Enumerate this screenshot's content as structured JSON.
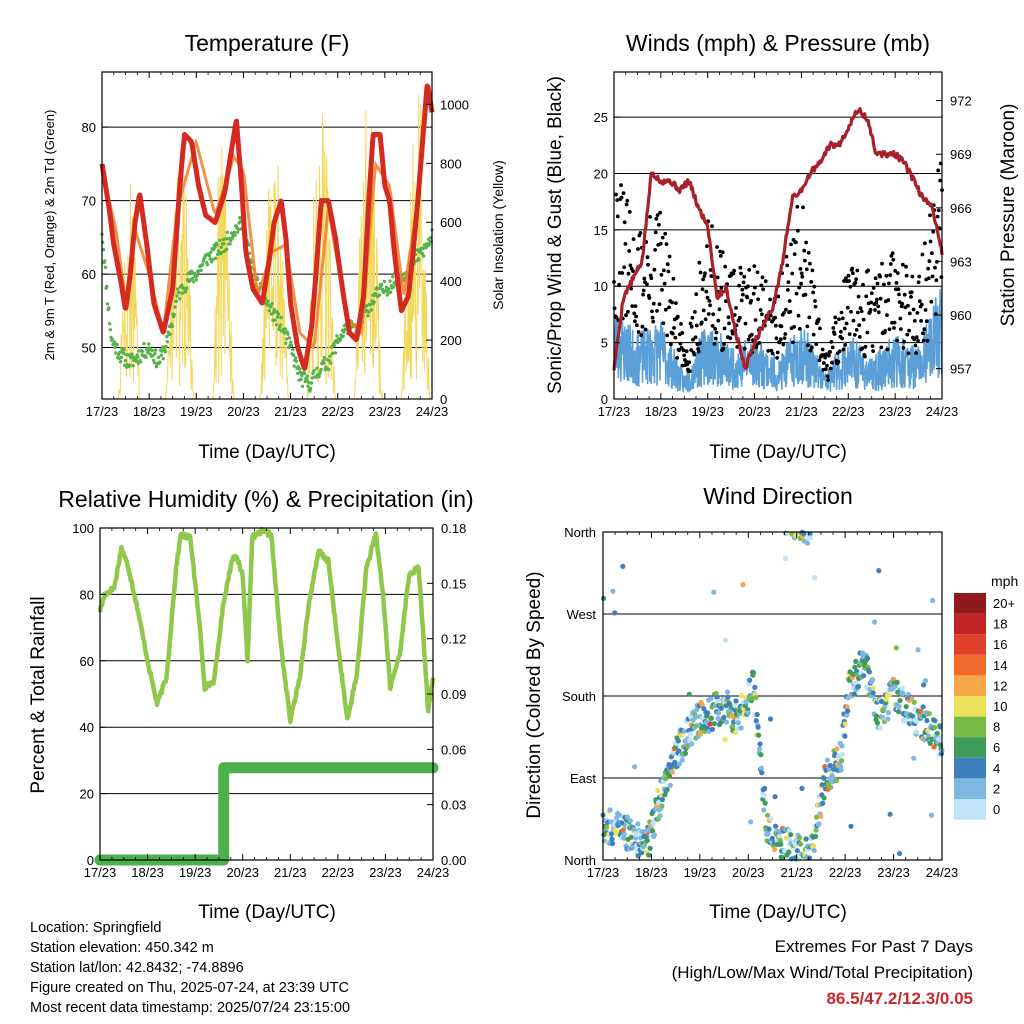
{
  "x_ticks": [
    "17/23",
    "18/23",
    "19/23",
    "20/23",
    "21/23",
    "22/23",
    "23/23",
    "24/23"
  ],
  "xlabel": "Time (Day/UTC)",
  "colors": {
    "temp2m": "#d42a20",
    "temp9m": "#f07f2a",
    "dew": "#56b24a",
    "solar": "#f4d85a",
    "wind": "#5a9fd8",
    "gust": "#000000",
    "pressure": "#a8202a",
    "rh": "#8fc84a",
    "precip": "#4cb04c",
    "extremes": "#c8282e"
  },
  "charts": {
    "temperature": {
      "title": "Temperature (F)",
      "ylabel": "2m & 9m T (Red, Orange) & 2m Td (Green)",
      "ylabel_right": "Solar Insolation (Yellow)",
      "y_ticks": [
        "50",
        "60",
        "70",
        "80"
      ],
      "y_ticks_right": [
        "0",
        "200",
        "400",
        "600",
        "800",
        "1000"
      ]
    },
    "winds": {
      "title": "Winds (mph) & Pressure (mb)",
      "ylabel": "Sonic/Prop Wind & Gust (Blue, Black)",
      "ylabel_right": "Station Pressure (Maroon)",
      "y_ticks": [
        "0",
        "5",
        "10",
        "15",
        "20",
        "25"
      ],
      "y_ticks_right": [
        "957",
        "960",
        "963",
        "966",
        "969",
        "972"
      ]
    },
    "humidity": {
      "title": "Relative Humidity (%) & Precipitation (in)",
      "ylabel": "Percent & Total Rainfall",
      "y_ticks": [
        "0",
        "20",
        "40",
        "60",
        "80",
        "100"
      ],
      "y_ticks_right": [
        "0.00",
        "0.03",
        "0.06",
        "0.09",
        "0.12",
        "0.15",
        "0.18"
      ]
    },
    "direction": {
      "title": "Wind Direction",
      "ylabel": "Direction (Colored By Speed)",
      "y_ticks": [
        "North",
        "East",
        "South",
        "West",
        "North"
      ],
      "legend_title": "mph",
      "legend_labels": [
        "20+",
        "18",
        "16",
        "14",
        "12",
        "10",
        "8",
        "6",
        "4",
        "2",
        "0"
      ],
      "legend_colors": [
        "#8e1a1e",
        "#c02326",
        "#e0412c",
        "#f26a2c",
        "#f8a64a",
        "#ece25a",
        "#79bb49",
        "#3e9c5a",
        "#3e7fbf",
        "#7fb7e3",
        "#bfe4f7"
      ]
    }
  },
  "info": {
    "location": "Location: Springfield",
    "elevation": "Station elevation: 450.342 m",
    "latlon": "Station lat/lon: 42.8432; -74.8896",
    "created": "Figure created on Thu, 2025-07-24, at 23:39 UTC",
    "recent": "Most recent data timestamp: 2025/07/24 23:15:00"
  },
  "extremes": {
    "line1": "Extremes For Past 7 Days",
    "line2": "(High/Low/Max Wind/Total Precipitation)",
    "values": "86.5/47.2/12.3/0.05"
  },
  "chart_data": [
    {
      "type": "line",
      "title": "Temperature (F)",
      "xlabel": "Time (Day/UTC)",
      "ylabel": "2m & 9m T (Red, Orange) & 2m Td (Green)",
      "y2label": "Solar Insolation (Yellow)",
      "categories": [
        "17/23",
        "18/23",
        "19/23",
        "20/23",
        "21/23",
        "22/23",
        "23/23",
        "24/23"
      ],
      "ylim": [
        43,
        87.5
      ],
      "y2lim": [
        0,
        1110
      ],
      "series": [
        {
          "axis": "left",
          "x": [
            0,
            0.15,
            0.25,
            0.4,
            0.5,
            0.6,
            0.7,
            0.8,
            0.95,
            1.1,
            1.3,
            1.5,
            1.65,
            1.75,
            1.9,
            2.05,
            2.2,
            2.4,
            2.6,
            2.75,
            2.85,
            2.95,
            3.05,
            3.2,
            3.4,
            3.55,
            3.65,
            3.8,
            3.9,
            4.0,
            4.15,
            4.3,
            4.45,
            4.55,
            4.65,
            4.8,
            4.95,
            5.1,
            5.25,
            5.4,
            5.55,
            5.65,
            5.75,
            5.9,
            6.0,
            6.1,
            6.2,
            6.35,
            6.5,
            6.6,
            6.7,
            6.8,
            6.9,
            7.0
          ],
          "values": [
            75,
            69,
            64,
            59,
            55,
            60,
            67,
            71,
            64,
            56,
            52,
            58,
            72,
            79,
            78,
            72,
            68,
            67,
            71,
            77,
            81,
            73,
            63,
            58,
            56,
            62,
            67,
            70,
            65,
            56,
            50,
            47,
            53,
            61,
            70,
            70,
            65,
            58,
            52,
            51,
            57,
            69,
            79,
            79,
            72,
            70,
            63,
            55,
            57,
            63,
            70,
            78,
            86,
            82
          ]
        },
        {
          "axis": "left",
          "x": [
            0,
            0.3,
            0.5,
            0.7,
            1.0,
            1.3,
            1.6,
            2.0,
            2.4,
            2.8,
            3.0,
            3.3,
            3.6,
            3.9,
            4.2,
            4.5,
            4.8,
            5.2,
            5.5,
            5.8,
            6.1,
            6.4,
            6.7,
            6.9,
            7.0
          ],
          "values": [
            74,
            66,
            56,
            66,
            60,
            52,
            69,
            78,
            68,
            76,
            74,
            57,
            63,
            64,
            52,
            50,
            69,
            54,
            52,
            75,
            72,
            57,
            70,
            85,
            83
          ]
        },
        {
          "axis": "left",
          "x": [
            0,
            0.1,
            0.2,
            0.4,
            0.6,
            0.8,
            1.0,
            1.2,
            1.4,
            1.6,
            1.8,
            2.0,
            2.2,
            2.4,
            2.6,
            2.8,
            3.0,
            3.2,
            3.4,
            3.6,
            3.8,
            4.0,
            4.2,
            4.4,
            4.6,
            4.8,
            5.0,
            5.2,
            5.4,
            5.6,
            5.8,
            6.0,
            6.2,
            6.4,
            6.6,
            6.8,
            7.0
          ],
          "values": [
            66,
            58,
            51,
            49,
            48,
            49,
            50,
            48,
            51,
            57,
            59,
            60,
            62,
            63,
            64,
            66,
            67,
            60,
            57,
            55,
            53,
            50,
            46,
            45,
            47,
            48,
            51,
            53,
            52,
            55,
            57,
            58,
            59,
            60,
            62,
            63,
            65
          ]
        },
        {
          "axis": "right",
          "x": [
            0.35,
            0.5,
            0.65,
            0.8,
            1.35,
            1.55,
            1.75,
            1.95,
            2.35,
            2.5,
            2.65,
            2.8,
            3.35,
            3.55,
            3.75,
            3.95,
            4.35,
            4.55,
            4.75,
            4.95,
            5.35,
            5.55,
            5.75,
            5.95,
            6.35,
            6.55,
            6.75,
            6.95
          ],
          "values": [
            0,
            600,
            900,
            0,
            0,
            700,
            950,
            0,
            0,
            1000,
            700,
            0,
            0,
            850,
            900,
            0,
            0,
            1000,
            950,
            0,
            0,
            1080,
            900,
            0,
            0,
            950,
            1050,
            0
          ]
        }
      ]
    },
    {
      "type": "scatter",
      "title": "Winds (mph) & Pressure (mb)",
      "xlabel": "Time (Day/UTC)",
      "ylabel": "Sonic/Prop Wind & Gust (Blue, Black)",
      "y2label": "Station Pressure (Maroon)",
      "categories": [
        "17/23",
        "18/23",
        "19/23",
        "20/23",
        "21/23",
        "22/23",
        "23/23",
        "24/23"
      ],
      "ylim": [
        0,
        29
      ],
      "y2lim": [
        955.3,
        973.6
      ],
      "series": [
        {
          "axis": "left",
          "x": [
            0,
            0.5,
            1.0,
            1.5,
            2.0,
            2.5,
            3.0,
            3.5,
            4.0,
            4.5,
            5.0,
            5.5,
            6.0,
            6.5,
            7.0
          ],
          "values": [
            7,
            5,
            6,
            2,
            6,
            4,
            5,
            3,
            6,
            2,
            5,
            3,
            5,
            4,
            9
          ]
        },
        {
          "axis": "left",
          "x": [
            0,
            0.5,
            1.0,
            1.5,
            2.0,
            2.5,
            3.0,
            3.5,
            4.0,
            4.5,
            5.0,
            5.5,
            6.0,
            6.5,
            7.0
          ],
          "values": [
            17,
            12,
            14,
            4,
            13,
            9,
            10,
            8,
            15,
            3,
            10,
            9,
            11,
            9,
            18
          ]
        },
        {
          "axis": "right",
          "x": [
            0,
            0.2,
            0.4,
            0.6,
            0.8,
            1.0,
            1.2,
            1.4,
            1.6,
            1.8,
            2.0,
            2.2,
            2.4,
            2.6,
            2.8,
            3.0,
            3.2,
            3.4,
            3.6,
            3.8,
            4.0,
            4.2,
            4.4,
            4.6,
            4.8,
            5.0,
            5.2,
            5.4,
            5.6,
            5.8,
            6.0,
            6.2,
            6.4,
            6.6,
            6.8,
            7.0
          ],
          "values": [
            957,
            961,
            962,
            963,
            968,
            967.5,
            967.5,
            967,
            967.5,
            966,
            965,
            961,
            961.5,
            959,
            957,
            958.5,
            959.5,
            960.5,
            963,
            966.5,
            967,
            968,
            968.5,
            969.5,
            969.5,
            970.5,
            971.5,
            971,
            969,
            969,
            969,
            968.5,
            967.5,
            966.5,
            966,
            963.5
          ]
        }
      ]
    },
    {
      "type": "line",
      "title": "Relative Humidity (%) & Precipitation (in)",
      "xlabel": "Time (Day/UTC)",
      "ylabel": "Percent & Total Rainfall",
      "categories": [
        "17/23",
        "18/23",
        "19/23",
        "20/23",
        "21/23",
        "22/23",
        "23/23",
        "24/23"
      ],
      "ylim": [
        0,
        100
      ],
      "y2lim": [
        0.0,
        0.18
      ],
      "series": [
        {
          "axis": "left",
          "x": [
            0,
            0.1,
            0.3,
            0.45,
            0.6,
            0.8,
            1.0,
            1.2,
            1.4,
            1.6,
            1.7,
            1.9,
            2.1,
            2.2,
            2.4,
            2.6,
            2.8,
            2.9,
            3.0,
            3.1,
            3.2,
            3.4,
            3.6,
            3.8,
            4.0,
            4.2,
            4.4,
            4.6,
            4.8,
            5.0,
            5.2,
            5.4,
            5.6,
            5.8,
            5.95,
            6.1,
            6.3,
            6.5,
            6.7,
            6.9,
            7.0
          ],
          "values": [
            75,
            80,
            82,
            94,
            88,
            75,
            60,
            47,
            55,
            88,
            98,
            97,
            70,
            52,
            54,
            78,
            92,
            90,
            86,
            60,
            97,
            99,
            98,
            65,
            42,
            55,
            78,
            93,
            90,
            65,
            42,
            56,
            88,
            98,
            80,
            52,
            62,
            86,
            88,
            45,
            55
          ]
        },
        {
          "axis": "right",
          "x": [
            0,
            2.6,
            2.6,
            2.8,
            7.0
          ],
          "values": [
            0.0,
            0.0,
            0.05,
            0.05,
            0.05
          ]
        }
      ]
    },
    {
      "type": "scatter",
      "title": "Wind Direction",
      "xlabel": "Time (Day/UTC)",
      "ylabel": "Direction (Colored By Speed)",
      "categories": [
        "17/23",
        "18/23",
        "19/23",
        "20/23",
        "21/23",
        "22/23",
        "23/23",
        "24/23"
      ],
      "y_categories": [
        "North",
        "East",
        "South",
        "West",
        "North"
      ],
      "colorbar": {
        "label": "mph",
        "levels": [
          "0",
          "2",
          "4",
          "6",
          "8",
          "10",
          "12",
          "14",
          "16",
          "18",
          "20+"
        ]
      },
      "series": [
        {
          "x": [
            0,
            0.5,
            0.9,
            1.3,
            1.6,
            1.9,
            2.2,
            2.5,
            2.8,
            3.1,
            3.4,
            3.8,
            4.0,
            4.3,
            4.6,
            4.9,
            5.1,
            5.4,
            5.7,
            6.0,
            6.3,
            6.6,
            6.9,
            7.0
          ],
          "values": [
            320,
            330,
            345,
            270,
            235,
            210,
            200,
            190,
            205,
            170,
            330,
            345,
            350,
            355,
            270,
            250,
            165,
            145,
            200,
            180,
            195,
            210,
            225,
            230
          ]
        }
      ]
    }
  ]
}
